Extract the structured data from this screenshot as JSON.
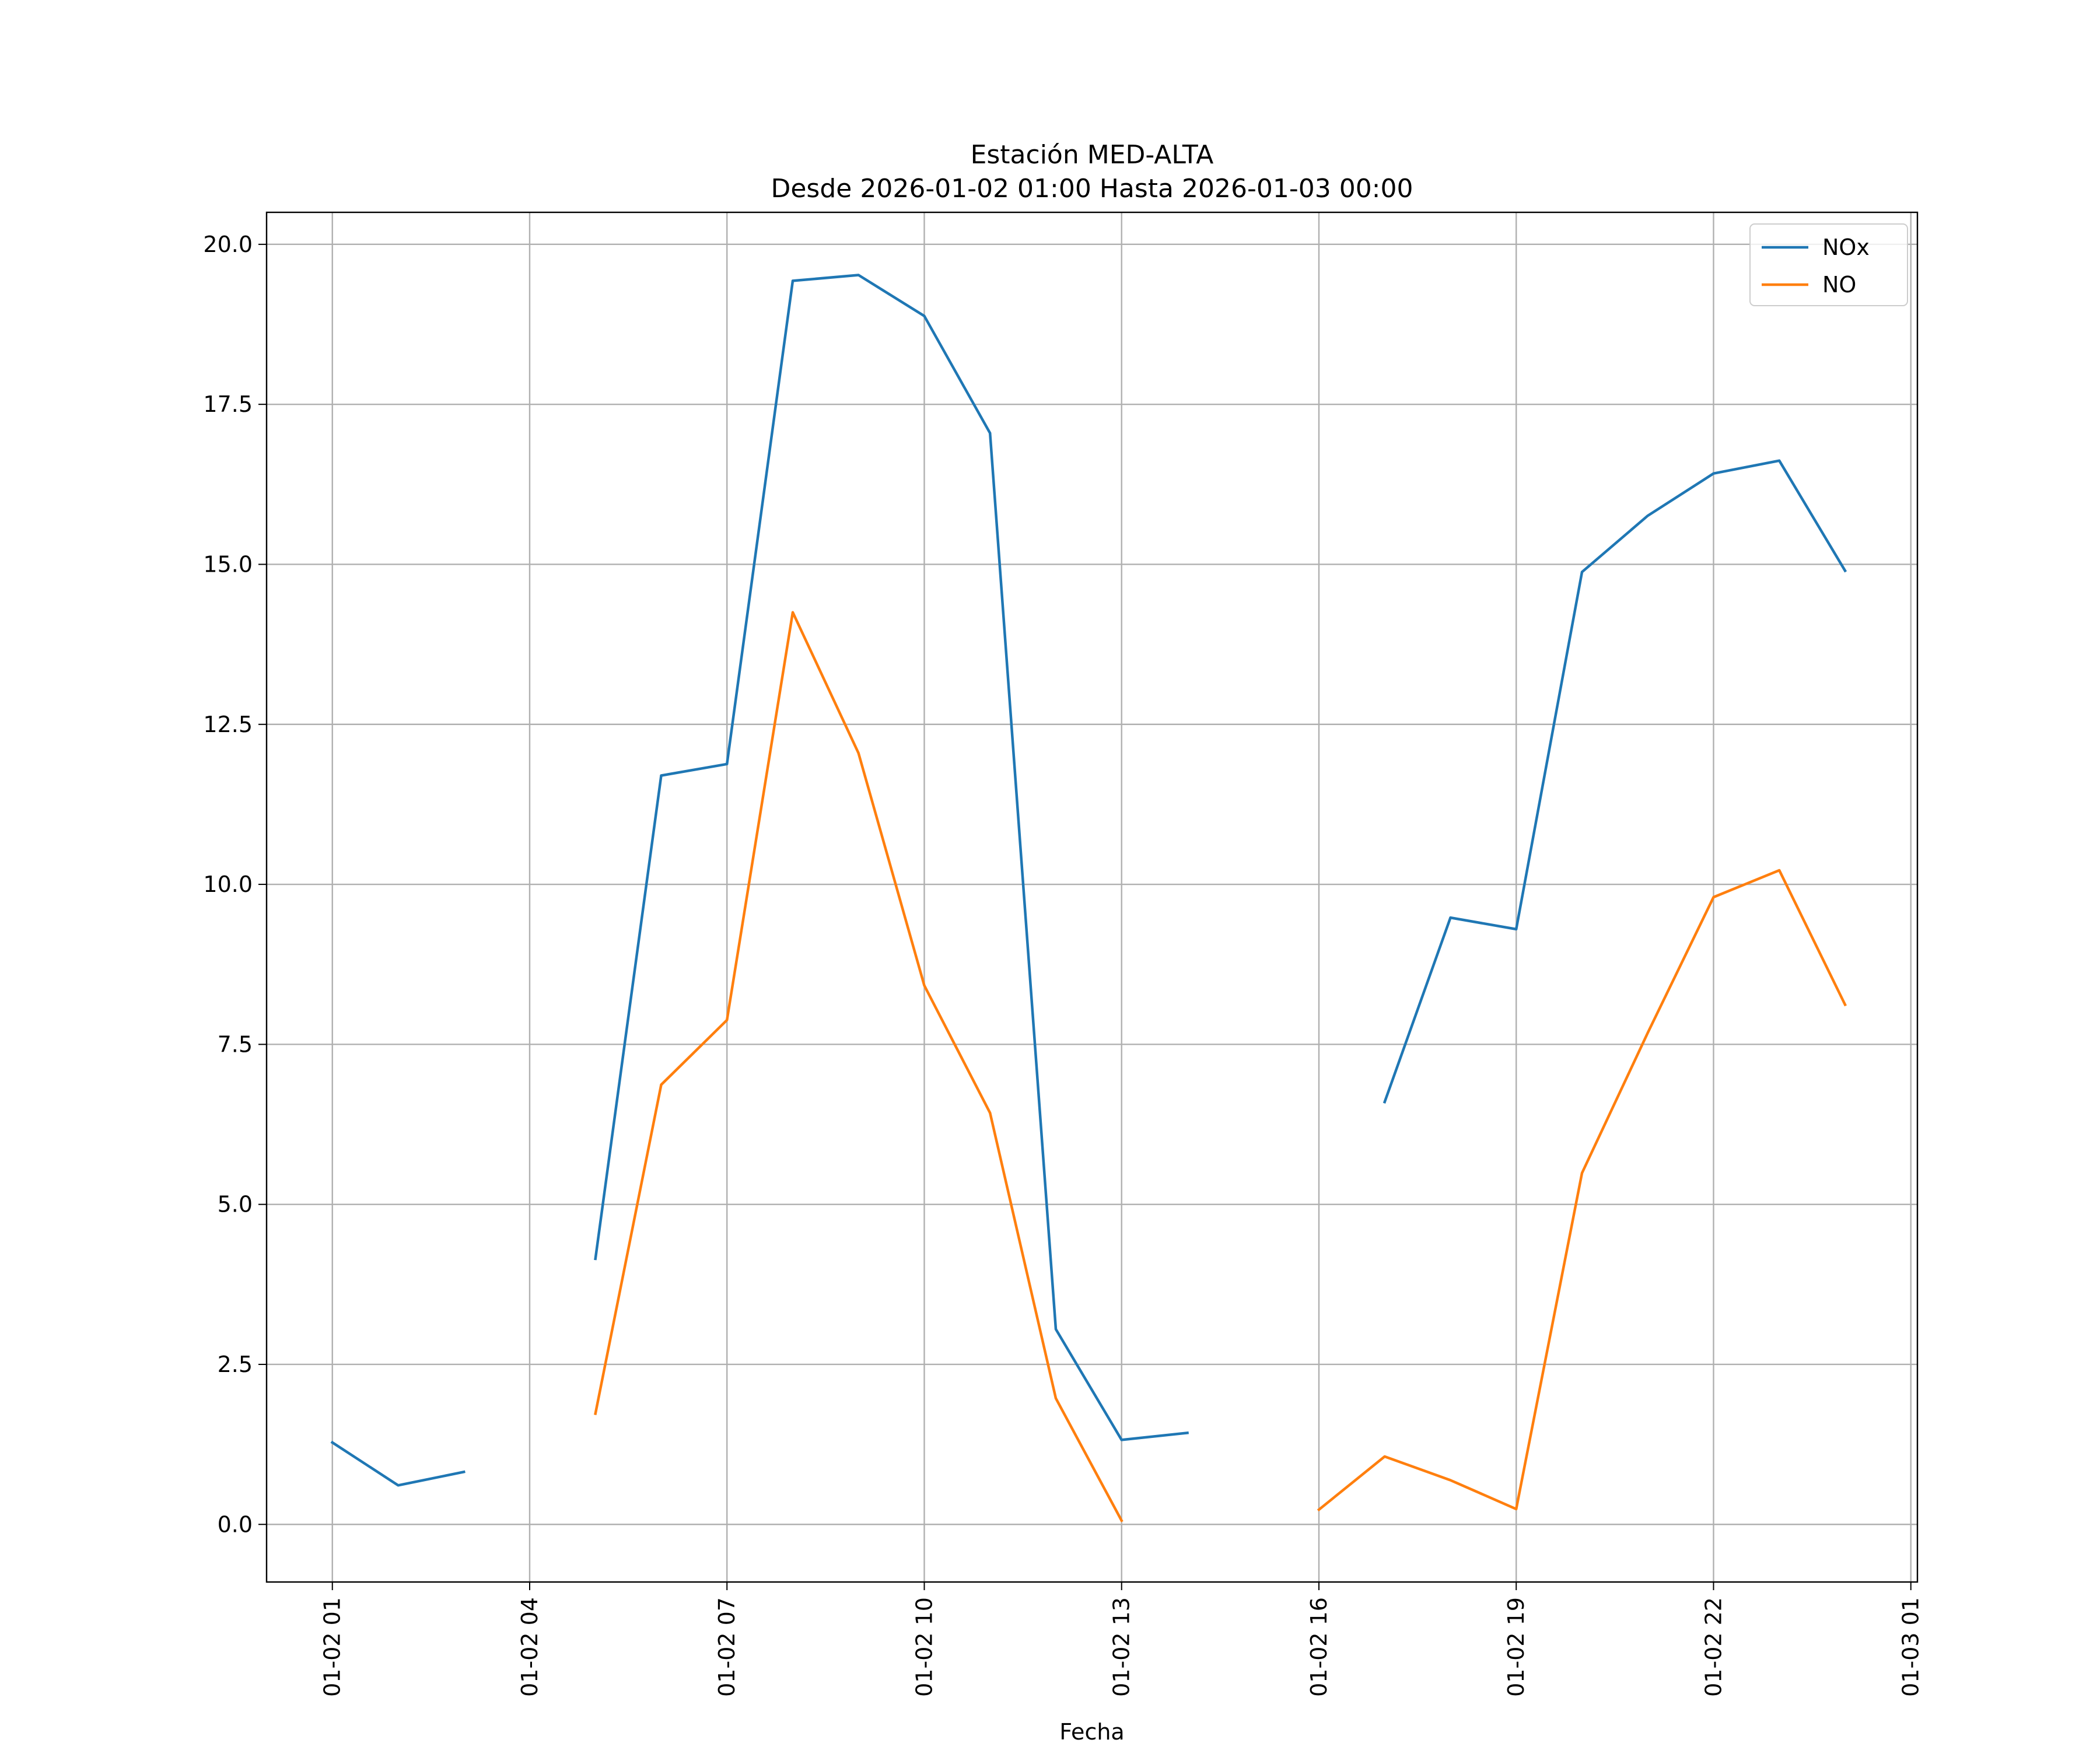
{
  "chart_data": {
    "type": "line",
    "title": "Estación MED-ALTA",
    "subtitle": "Desde 2026-01-02 01:00 Hasta 2026-01-03 00:00",
    "xlabel": "Fecha",
    "ylabel": "",
    "x": [
      "2026-01-02 01:00",
      "2026-01-02 02:00",
      "2026-01-02 03:00",
      "2026-01-02 04:00",
      "2026-01-02 05:00",
      "2026-01-02 06:00",
      "2026-01-02 07:00",
      "2026-01-02 08:00",
      "2026-01-02 09:00",
      "2026-01-02 10:00",
      "2026-01-02 11:00",
      "2026-01-02 12:00",
      "2026-01-02 13:00",
      "2026-01-02 14:00",
      "2026-01-02 15:00",
      "2026-01-02 16:00",
      "2026-01-02 17:00",
      "2026-01-02 18:00",
      "2026-01-02 19:00",
      "2026-01-02 20:00",
      "2026-01-02 21:00",
      "2026-01-02 22:00",
      "2026-01-02 23:00",
      "2026-01-03 00:00"
    ],
    "xlim": [
      "2026-01-02 00:00",
      "2026-01-03 01:06"
    ],
    "ylim": [
      -0.9,
      20.5
    ],
    "x_ticks": [
      {
        "value": "2026-01-02 01:00",
        "label": "01-02 01"
      },
      {
        "value": "2026-01-02 04:00",
        "label": "01-02 04"
      },
      {
        "value": "2026-01-02 07:00",
        "label": "01-02 07"
      },
      {
        "value": "2026-01-02 10:00",
        "label": "01-02 10"
      },
      {
        "value": "2026-01-02 13:00",
        "label": "01-02 13"
      },
      {
        "value": "2026-01-02 16:00",
        "label": "01-02 16"
      },
      {
        "value": "2026-01-02 19:00",
        "label": "01-02 19"
      },
      {
        "value": "2026-01-02 22:00",
        "label": "01-02 22"
      },
      {
        "value": "2026-01-03 01:00",
        "label": "01-03 01"
      }
    ],
    "y_ticks": [
      {
        "value": 0,
        "label": "0.0"
      },
      {
        "value": 2.5,
        "label": "2.5"
      },
      {
        "value": 5,
        "label": "5.0"
      },
      {
        "value": 7.5,
        "label": "7.5"
      },
      {
        "value": 10,
        "label": "10.0"
      },
      {
        "value": 12.5,
        "label": "12.5"
      },
      {
        "value": 15,
        "label": "15.0"
      },
      {
        "value": 17.5,
        "label": "17.5"
      },
      {
        "value": 20,
        "label": "20.0"
      }
    ],
    "grid": true,
    "legend_position": "top-right",
    "series": [
      {
        "name": "NOx",
        "color": "#1f77b4",
        "values": [
          1.28,
          0.61,
          0.82,
          null,
          4.15,
          11.7,
          11.88,
          19.43,
          19.52,
          18.88,
          17.05,
          3.05,
          1.32,
          1.43,
          null,
          null,
          6.6,
          9.48,
          9.3,
          14.88,
          15.76,
          16.42,
          16.62,
          14.9
        ]
      },
      {
        "name": "NO",
        "color": "#ff7f0e",
        "values": [
          null,
          null,
          null,
          null,
          1.73,
          6.87,
          7.88,
          14.25,
          12.05,
          8.42,
          6.43,
          1.97,
          0.06,
          null,
          null,
          0.23,
          1.06,
          0.69,
          0.24,
          5.49,
          7.68,
          9.8,
          10.22,
          8.12
        ]
      }
    ]
  }
}
